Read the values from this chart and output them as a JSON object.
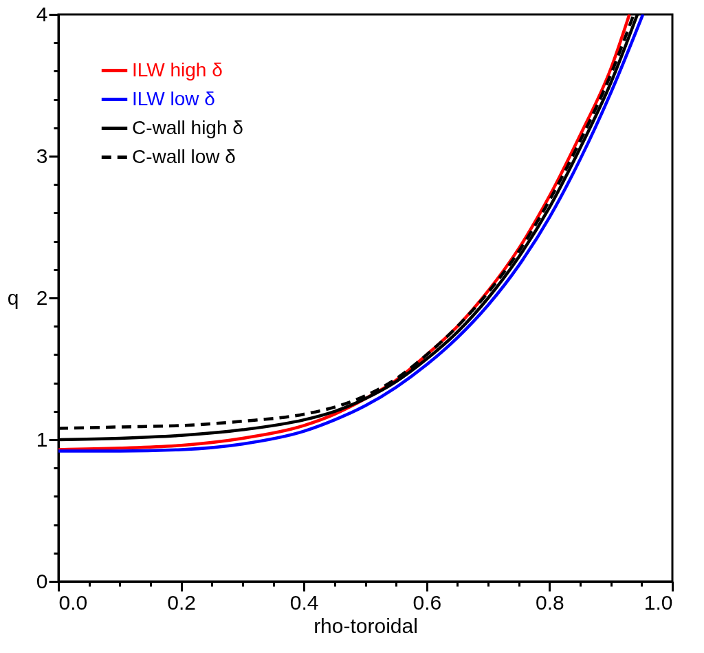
{
  "chart_data": {
    "type": "line",
    "xlabel": "rho-toroidal",
    "ylabel": "q",
    "xlim": [
      0,
      1
    ],
    "ylim": [
      0,
      4
    ],
    "xticks": [
      {
        "value": 0,
        "label": "0.0"
      },
      {
        "value": 0.05,
        "label": null
      },
      {
        "value": 0.1,
        "label": null
      },
      {
        "value": 0.15,
        "label": null
      },
      {
        "value": 0.2,
        "label": "0.2"
      },
      {
        "value": 0.25,
        "label": null
      },
      {
        "value": 0.3,
        "label": null
      },
      {
        "value": 0.35,
        "label": null
      },
      {
        "value": 0.4,
        "label": "0.4"
      },
      {
        "value": 0.45,
        "label": null
      },
      {
        "value": 0.5,
        "label": null
      },
      {
        "value": 0.55,
        "label": null
      },
      {
        "value": 0.6,
        "label": "0.6"
      },
      {
        "value": 0.65,
        "label": null
      },
      {
        "value": 0.7,
        "label": null
      },
      {
        "value": 0.75,
        "label": null
      },
      {
        "value": 0.8,
        "label": "0.8"
      },
      {
        "value": 0.85,
        "label": null
      },
      {
        "value": 0.9,
        "label": null
      },
      {
        "value": 0.95,
        "label": null
      },
      {
        "value": 1,
        "label": "1.0"
      }
    ],
    "yticks": [
      0,
      {
        "value": 0.2,
        "label": null
      },
      {
        "value": 0.4,
        "label": null
      },
      {
        "value": 0.6,
        "label": null
      },
      {
        "value": 0.8,
        "label": null
      },
      1,
      {
        "value": 1.2,
        "label": null
      },
      {
        "value": 1.4,
        "label": null
      },
      {
        "value": 1.6,
        "label": null
      },
      {
        "value": 1.8,
        "label": null
      },
      2,
      {
        "value": 2.2,
        "label": null
      },
      {
        "value": 2.4,
        "label": null
      },
      {
        "value": 2.6,
        "label": null
      },
      {
        "value": 2.8,
        "label": null
      },
      3,
      {
        "value": 3.2,
        "label": null
      },
      {
        "value": 3.4,
        "label": null
      },
      {
        "value": 3.6,
        "label": null
      },
      {
        "value": 3.8,
        "label": null
      },
      4
    ],
    "legend": "top left",
    "grid": false,
    "marker": "none",
    "series": [
      {
        "name": "ILW high δ",
        "color": "#ff0000",
        "line_style": "solid",
        "x": [
          0,
          0.1,
          0.2,
          0.3,
          0.4,
          0.45,
          0.5,
          0.55,
          0.6,
          0.65,
          0.7,
          0.75,
          0.8,
          0.85,
          0.9,
          0.93
        ],
        "values": [
          0.93,
          0.94,
          0.96,
          1.01,
          1.1,
          1.18,
          1.29,
          1.42,
          1.6,
          1.8,
          2.05,
          2.35,
          2.72,
          3.15,
          3.62,
          4.0
        ]
      },
      {
        "name": "ILW low δ",
        "color": "#0000ff",
        "line_style": "solid",
        "x": [
          0,
          0.1,
          0.2,
          0.3,
          0.4,
          0.45,
          0.5,
          0.55,
          0.6,
          0.65,
          0.7,
          0.75,
          0.8,
          0.85,
          0.9,
          0.952
        ],
        "values": [
          0.92,
          0.92,
          0.93,
          0.97,
          1.06,
          1.14,
          1.24,
          1.37,
          1.53,
          1.72,
          1.95,
          2.23,
          2.57,
          2.98,
          3.45,
          4.0
        ]
      },
      {
        "name": "C-wall high δ",
        "color": "#000000",
        "line_style": "solid",
        "x": [
          0,
          0.1,
          0.2,
          0.3,
          0.4,
          0.45,
          0.5,
          0.55,
          0.6,
          0.65,
          0.7,
          0.75,
          0.8,
          0.85,
          0.9,
          0.943
        ],
        "values": [
          1.0,
          1.01,
          1.03,
          1.07,
          1.14,
          1.2,
          1.29,
          1.41,
          1.57,
          1.76,
          2.0,
          2.29,
          2.64,
          3.06,
          3.52,
          4.0
        ]
      },
      {
        "name": "C-wall low δ",
        "color": "#000000",
        "line_style": "dashed",
        "x": [
          0,
          0.1,
          0.2,
          0.3,
          0.4,
          0.45,
          0.5,
          0.55,
          0.6,
          0.65,
          0.7,
          0.75,
          0.8,
          0.85,
          0.9,
          0.937
        ],
        "values": [
          1.08,
          1.09,
          1.1,
          1.13,
          1.18,
          1.23,
          1.31,
          1.43,
          1.6,
          1.8,
          2.04,
          2.33,
          2.69,
          3.11,
          3.58,
          4.0
        ]
      }
    ]
  }
}
